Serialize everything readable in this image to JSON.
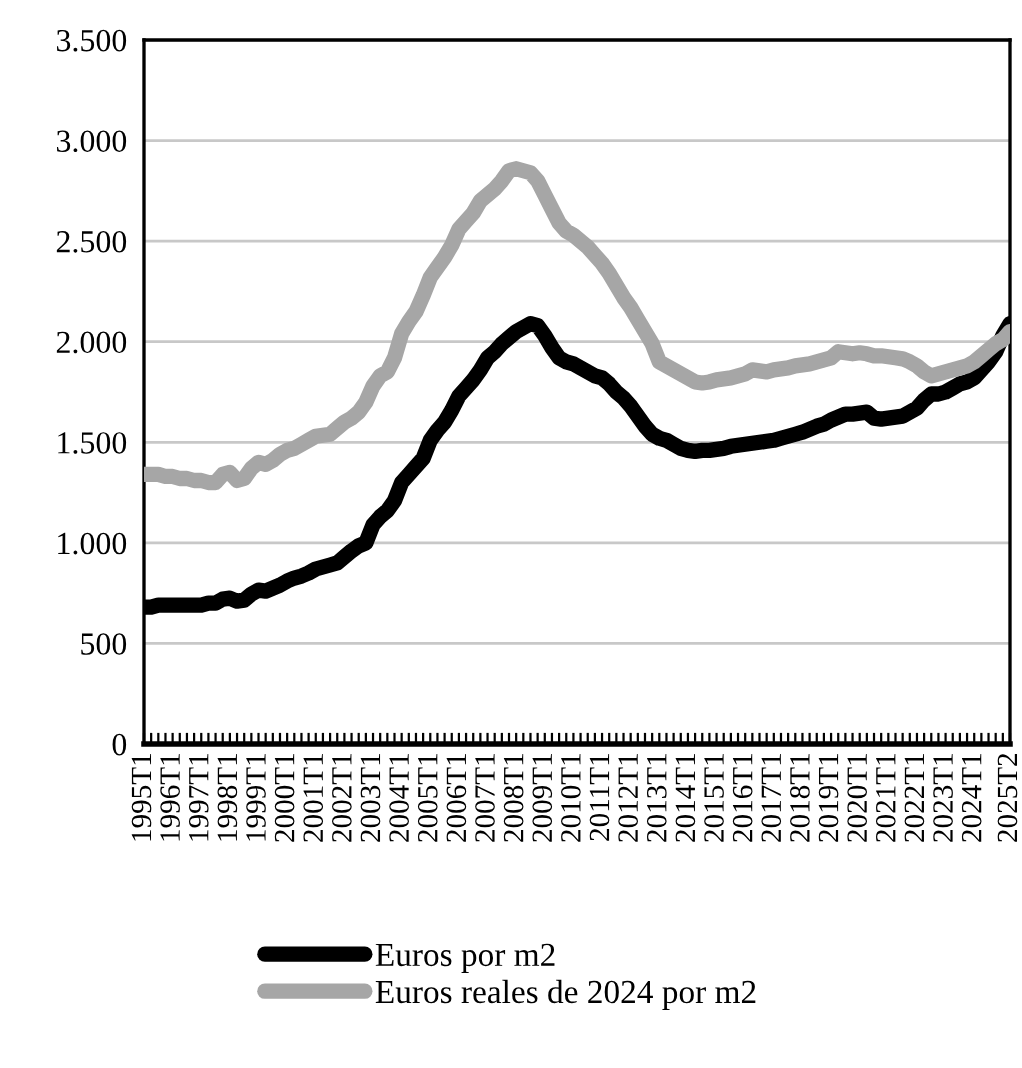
{
  "chart_data": {
    "type": "line",
    "categories": [
      "1995T1",
      null,
      null,
      null,
      "1996T1",
      null,
      null,
      null,
      "1997T1",
      null,
      null,
      null,
      "1998T1",
      null,
      null,
      null,
      "1999T1",
      null,
      null,
      null,
      "2000T1",
      null,
      null,
      null,
      "2001T1",
      null,
      null,
      null,
      "2002T1",
      null,
      null,
      null,
      "2003T1",
      null,
      null,
      null,
      "2004T1",
      null,
      null,
      null,
      "2005T1",
      null,
      null,
      null,
      "2006T1",
      null,
      null,
      null,
      "2007T1",
      null,
      null,
      null,
      "2008T1",
      null,
      null,
      null,
      "2009T1",
      null,
      null,
      null,
      "2010T1",
      null,
      null,
      null,
      "2011T1",
      null,
      null,
      null,
      "2012T1",
      null,
      null,
      null,
      "2013T1",
      null,
      null,
      null,
      "2014T1",
      null,
      null,
      null,
      "2015T1",
      null,
      null,
      null,
      "2016T1",
      null,
      null,
      null,
      "2017T1",
      null,
      null,
      null,
      "2018T1",
      null,
      null,
      null,
      "2019T1",
      null,
      null,
      null,
      "2020T1",
      null,
      null,
      null,
      "2021T1",
      null,
      null,
      null,
      "2022T1",
      null,
      null,
      null,
      "2023T1",
      null,
      null,
      null,
      "2024T1",
      null,
      null,
      null,
      null,
      "2025T2"
    ],
    "series": [
      {
        "name": "Euros por m2",
        "color": "#000000",
        "values": [
          680,
          680,
          690,
          690,
          690,
          690,
          690,
          690,
          690,
          700,
          700,
          720,
          725,
          710,
          715,
          745,
          765,
          760,
          775,
          790,
          810,
          825,
          835,
          850,
          870,
          880,
          890,
          900,
          930,
          960,
          985,
          1000,
          1090,
          1130,
          1160,
          1210,
          1300,
          1340,
          1380,
          1420,
          1510,
          1560,
          1600,
          1660,
          1730,
          1770,
          1810,
          1860,
          1920,
          1950,
          1990,
          2020,
          2050,
          2070,
          2090,
          2080,
          2030,
          1970,
          1920,
          1900,
          1890,
          1870,
          1850,
          1830,
          1820,
          1790,
          1750,
          1720,
          1680,
          1630,
          1580,
          1540,
          1520,
          1510,
          1490,
          1470,
          1460,
          1455,
          1460,
          1460,
          1465,
          1470,
          1480,
          1485,
          1490,
          1495,
          1500,
          1505,
          1510,
          1520,
          1530,
          1540,
          1550,
          1565,
          1580,
          1590,
          1610,
          1625,
          1640,
          1640,
          1645,
          1650,
          1620,
          1615,
          1620,
          1625,
          1630,
          1650,
          1670,
          1710,
          1740,
          1740,
          1750,
          1770,
          1790,
          1800,
          1820,
          1860,
          1900,
          1950,
          2030,
          2090
        ]
      },
      {
        "name": "Euros reales de 2024 por m2",
        "color": "#a6a6a6",
        "values": [
          1340,
          1340,
          1340,
          1330,
          1330,
          1320,
          1320,
          1310,
          1310,
          1300,
          1300,
          1340,
          1350,
          1310,
          1320,
          1370,
          1400,
          1390,
          1410,
          1440,
          1460,
          1470,
          1490,
          1510,
          1530,
          1535,
          1540,
          1570,
          1600,
          1620,
          1650,
          1700,
          1780,
          1830,
          1850,
          1920,
          2040,
          2100,
          2150,
          2230,
          2320,
          2370,
          2420,
          2480,
          2560,
          2600,
          2640,
          2700,
          2730,
          2760,
          2800,
          2850,
          2860,
          2850,
          2840,
          2800,
          2730,
          2660,
          2590,
          2550,
          2530,
          2500,
          2470,
          2430,
          2390,
          2340,
          2280,
          2220,
          2170,
          2110,
          2050,
          1990,
          1900,
          1880,
          1860,
          1840,
          1820,
          1800,
          1795,
          1800,
          1810,
          1815,
          1820,
          1830,
          1840,
          1860,
          1855,
          1850,
          1860,
          1865,
          1870,
          1880,
          1885,
          1890,
          1900,
          1910,
          1920,
          1950,
          1945,
          1940,
          1945,
          1940,
          1930,
          1930,
          1925,
          1920,
          1915,
          1900,
          1880,
          1850,
          1830,
          1840,
          1850,
          1860,
          1870,
          1880,
          1900,
          1930,
          1960,
          1990,
          2010,
          2050
        ]
      }
    ],
    "ylim": [
      0,
      3500
    ],
    "yticks": [
      {
        "value": 0,
        "label": "0"
      },
      {
        "value": 500,
        "label": "500"
      },
      {
        "value": 1000,
        "label": "1.000"
      },
      {
        "value": 1500,
        "label": "1.500"
      },
      {
        "value": 2000,
        "label": "2.000"
      },
      {
        "value": 2500,
        "label": "2.500"
      },
      {
        "value": 3000,
        "label": "3.000"
      },
      {
        "value": 3500,
        "label": "3.500"
      }
    ],
    "grid": "y",
    "legend": "bottom",
    "marker": "none",
    "line_style": "solid"
  }
}
